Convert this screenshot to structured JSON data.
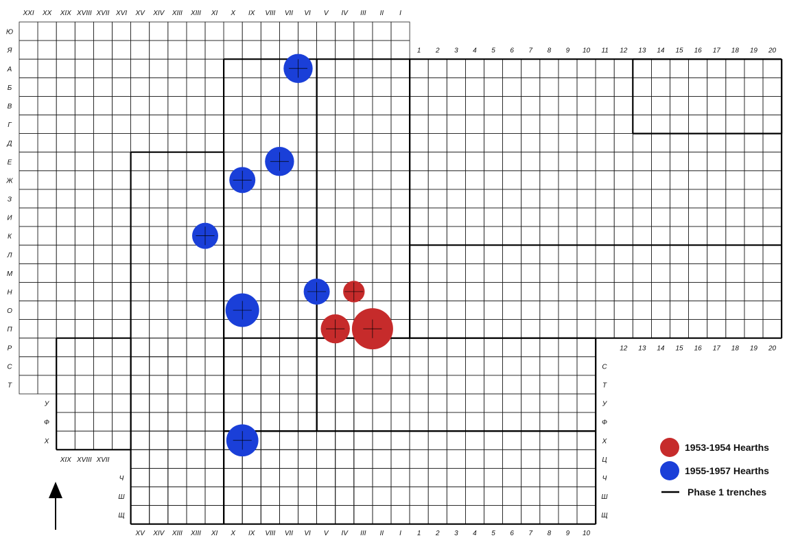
{
  "roman": [
    "XXI",
    "XX",
    "XIX",
    "XVIII",
    "XVII",
    "XVI",
    "XV",
    "XIV",
    "XIII",
    "XIII",
    "XI",
    "X",
    "IX",
    "VIII",
    "VII",
    "VI",
    "V",
    "IV",
    "III",
    "II",
    "I"
  ],
  "arabic": [
    "1",
    "2",
    "3",
    "4",
    "5",
    "6",
    "7",
    "8",
    "9",
    "10",
    "11",
    "12",
    "13",
    "14",
    "15",
    "16",
    "17",
    "18",
    "19",
    "20"
  ],
  "rows_main": [
    "Ю",
    "Я",
    "А",
    "Б",
    "В",
    "Г",
    "Д",
    "Е",
    "Ж",
    "З",
    "И",
    "К",
    "Л",
    "М",
    "Н",
    "О",
    "П",
    "Р",
    "С",
    "Т"
  ],
  "rows_left_extra": [
    "У",
    "Ф",
    "Х"
  ],
  "rows_bottom_left": [
    "Ч",
    "Ш",
    "Щ"
  ],
  "rows_right": [
    "С",
    "Т",
    "У",
    "Ф",
    "Х",
    "Ц",
    "Ч",
    "Ш",
    "Щ"
  ],
  "mid_left_cols": [
    "XIX",
    "XVIII",
    "XVII"
  ],
  "bottom_cols": [
    "XV",
    "XIV",
    "XIII",
    "XIII",
    "XI",
    "X",
    "IX",
    "VIII",
    "VII",
    "VI",
    "V",
    "IV",
    "III",
    "II",
    "I",
    "1",
    "2",
    "3",
    "4",
    "5",
    "6",
    "7",
    "8",
    "9",
    "10"
  ],
  "arabic_mid": [
    "12",
    "13",
    "14",
    "15",
    "16",
    "17",
    "18",
    "19",
    "20"
  ],
  "hearths_1953_1954": [
    {
      "col": "III",
      "row": "П",
      "size": 1.0
    },
    {
      "col": "V",
      "row": "П",
      "size": 0.6
    },
    {
      "col": "IV",
      "row": "Н",
      "size": 0.35
    }
  ],
  "hearths_1955_1957": [
    {
      "col": "VII",
      "row": "А",
      "size": 0.6
    },
    {
      "col": "VIII",
      "row": "Е",
      "size": 0.6
    },
    {
      "col": "X",
      "row": "Ж",
      "size": 0.5
    },
    {
      "col": "XIII",
      "row": "К",
      "size": 0.5
    },
    {
      "col": "VI",
      "row": "Н",
      "size": 0.5
    },
    {
      "col": "X",
      "row": "О",
      "size": 0.75
    },
    {
      "col": "X",
      "row": "Х",
      "size": 0.7
    }
  ],
  "colors": {
    "red": "#c62b2b",
    "blue": "#1a3fd8",
    "grid": "#1a1a1a"
  },
  "legend": {
    "red_label": "1953-1954 Hearths",
    "blue_label": "1955-1957 Hearths",
    "line_label": "Phase 1 trenches"
  }
}
